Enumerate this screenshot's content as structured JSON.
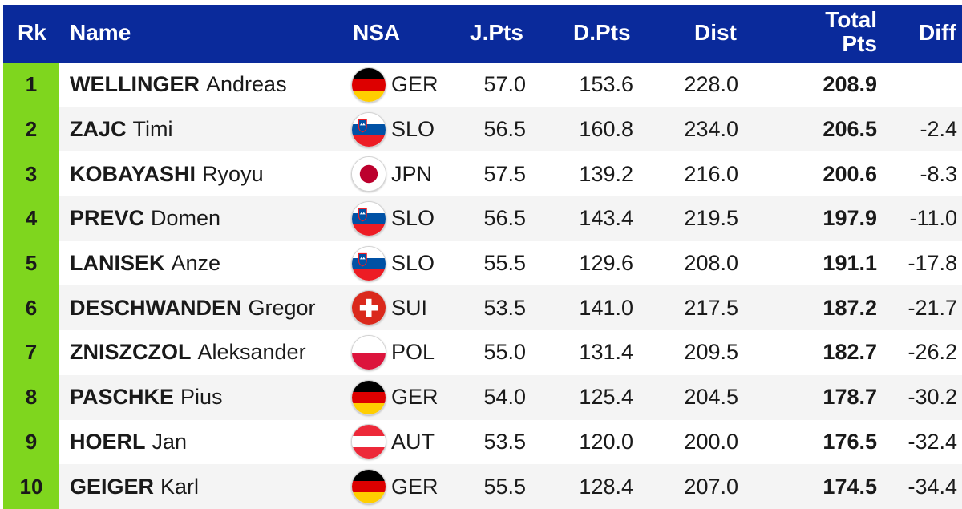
{
  "headers": {
    "rk": "Rk",
    "name": "Name",
    "nsa": "NSA",
    "jpts": "J.Pts",
    "dpts": "D.Pts",
    "dist": "Dist",
    "total_line1": "Total",
    "total_line2": "Pts",
    "diff": "Diff"
  },
  "rows": [
    {
      "rank": "1",
      "last": "WELLINGER",
      "first": "Andreas",
      "nsa": "GER",
      "flag": "germany-flag-icon",
      "jpts": "57.0",
      "dpts": "153.6",
      "dist": "228.0",
      "total": "208.9",
      "diff": ""
    },
    {
      "rank": "2",
      "last": "ZAJC",
      "first": "Timi",
      "nsa": "SLO",
      "flag": "slovenia-flag-icon",
      "jpts": "56.5",
      "dpts": "160.8",
      "dist": "234.0",
      "total": "206.5",
      "diff": "-2.4"
    },
    {
      "rank": "3",
      "last": "KOBAYASHI",
      "first": "Ryoyu",
      "nsa": "JPN",
      "flag": "japan-flag-icon",
      "jpts": "57.5",
      "dpts": "139.2",
      "dist": "216.0",
      "total": "200.6",
      "diff": "-8.3"
    },
    {
      "rank": "4",
      "last": "PREVC",
      "first": "Domen",
      "nsa": "SLO",
      "flag": "slovenia-flag-icon",
      "jpts": "56.5",
      "dpts": "143.4",
      "dist": "219.5",
      "total": "197.9",
      "diff": "-11.0"
    },
    {
      "rank": "5",
      "last": "LANISEK",
      "first": "Anze",
      "nsa": "SLO",
      "flag": "slovenia-flag-icon",
      "jpts": "55.5",
      "dpts": "129.6",
      "dist": "208.0",
      "total": "191.1",
      "diff": "-17.8"
    },
    {
      "rank": "6",
      "last": "DESCHWANDEN",
      "first": "Gregor",
      "nsa": "SUI",
      "flag": "switzerland-flag-icon",
      "jpts": "53.5",
      "dpts": "141.0",
      "dist": "217.5",
      "total": "187.2",
      "diff": "-21.7"
    },
    {
      "rank": "7",
      "last": "ZNISZCZOL",
      "first": "Aleksander",
      "nsa": "POL",
      "flag": "poland-flag-icon",
      "jpts": "55.0",
      "dpts": "131.4",
      "dist": "209.5",
      "total": "182.7",
      "diff": "-26.2"
    },
    {
      "rank": "8",
      "last": "PASCHKE",
      "first": "Pius",
      "nsa": "GER",
      "flag": "germany-flag-icon",
      "jpts": "54.0",
      "dpts": "125.4",
      "dist": "204.5",
      "total": "178.7",
      "diff": "-30.2"
    },
    {
      "rank": "9",
      "last": "HOERL",
      "first": "Jan",
      "nsa": "AUT",
      "flag": "austria-flag-icon",
      "jpts": "53.5",
      "dpts": "120.0",
      "dist": "200.0",
      "total": "176.5",
      "diff": "-32.4"
    },
    {
      "rank": "10",
      "last": "GEIGER",
      "first": "Karl",
      "nsa": "GER",
      "flag": "germany-flag-icon",
      "jpts": "55.5",
      "dpts": "128.4",
      "dist": "207.0",
      "total": "174.5",
      "diff": "-34.4"
    }
  ],
  "colors": {
    "header_bg": "#0a2a9b",
    "rank_bg": "#7fd61e",
    "row_alt_bg": "#f4f4f4"
  }
}
